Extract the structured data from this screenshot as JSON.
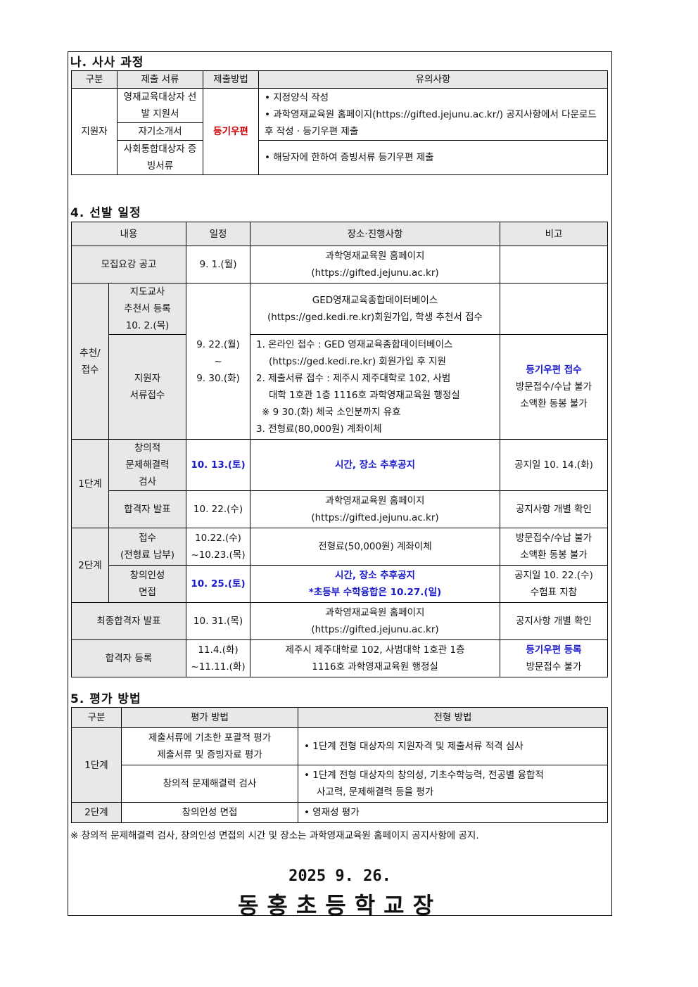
{
  "s1": {
    "title": "나. 사사 과정",
    "headers": [
      "구분",
      "제출 서류",
      "제출방법",
      "유의사항"
    ],
    "group": "지원자",
    "docs": [
      "영재교육대상자 선발 지원서",
      "자기소개서",
      "사회통합대상자 증빙서류"
    ],
    "method": "등기우편",
    "notes": [
      "• 지정양식 작성",
      "• 과학영재교육원 홈페이지(https://gifted.jejunu.ac.kr/) 공지사항에서 다운로드 후 작성 · 등기우편 제출",
      "• 해당자에 한하여 증빙서류 등기우편 제출"
    ]
  },
  "s2": {
    "title": "4. 선발 일정",
    "headers": [
      "내용",
      "일정",
      "장소·진행사항",
      "비고"
    ],
    "r1": {
      "c": "모집요강 공고",
      "d": "9. 1.(월)",
      "p": [
        "과학영재교육원 홈페이지",
        "(https://gifted.jejunu.ac.kr)"
      ]
    },
    "rec": {
      "group": "추천/ 접수",
      "sub1": [
        "지도교사",
        "추천서 등록",
        "10. 2.(목)"
      ],
      "d": [
        "9. 22.(월)",
        "~",
        "9. 30.(화)"
      ],
      "p1": [
        "GED영재교육종합데이터베이스",
        "(https://ged.kedi.re.kr)회원가입, 학생 추천서 접수"
      ],
      "sub2": [
        "지원자",
        "서류접수"
      ],
      "p2": [
        "1. 온라인 접수 : GED 영재교육종합데이터베이스",
        "(https://ged.kedi.re.kr) 회원가입 후 지원",
        "2. 제출서류 접수 : 제주시 제주대학로 102, 사범",
        "대학 1호관 1층 1116호 과학영재교육원 행정실",
        "※ 9 30.(화) 체국 소인분까지 유효",
        "3. 전형료(80,000원) 계좌이체"
      ],
      "n2": [
        "등기우편 접수",
        "방문접수/수납 불가",
        "소액환 동봉 불가"
      ]
    },
    "st1": {
      "group": "1단계",
      "sub1": [
        "창의적",
        "문제해결력",
        "검사"
      ],
      "d1": "10. 13.(토)",
      "p1": "시간, 장소 추후공지",
      "n1": "공지일 10. 14.(화)",
      "sub2": "합격자 발표",
      "d2": "10. 22.(수)",
      "p2": [
        "과학영재교육원 홈페이지",
        "(https://gifted.jejunu.ac.kr)"
      ],
      "n2": "공지사항 개별 확인"
    },
    "st2": {
      "group": "2단계",
      "sub1": [
        "접수",
        "(전형료 납부)"
      ],
      "d1": [
        "10.22.(수)",
        "~10.23.(목)"
      ],
      "p1": "전형료(50,000원) 계좌이체",
      "n1": [
        "방문접수/수납 불가",
        "소액환 동봉 불가"
      ],
      "sub2": [
        "창의인성",
        "면접"
      ],
      "d2": "10. 25.(토)",
      "p2": [
        "시간, 장소 추후공지",
        "*초등부 수학융합은 10.27.(일)"
      ],
      "n2": [
        "공지일 10. 22.(수)",
        "수험표 지참"
      ]
    },
    "fin": {
      "c": "최종합격자 발표",
      "d": "10. 31.(목)",
      "p": [
        "과학영재교육원 홈페이지",
        "(https://gifted.jejunu.ac.kr)"
      ],
      "n": "공지사항 개별 확인"
    },
    "reg": {
      "c": "합격자 등록",
      "d": [
        "11.4.(화)",
        "~11.11.(화)"
      ],
      "p": [
        "제주시 제주대학로 102, 사범대학 1호관 1층",
        "1116호 과학영재교육원 행정실"
      ],
      "n": [
        "등기우편 등록",
        "방문접수 불가"
      ]
    }
  },
  "s3": {
    "title": "5. 평가 방법",
    "headers": [
      "구분",
      "평가 방법",
      "전형 방법"
    ],
    "st1": "1단계",
    "m1": [
      "제출서류에 기초한 포괄적 평가",
      "제출서류 및 증빙자료 평가"
    ],
    "e1": "• 1단계 전형 대상자의 지원자격 및 제출서류 적격 심사",
    "m2": "창의적 문제해결력 검사",
    "e2": [
      "• 1단계 전형 대상자의 창의성, 기초수학능력, 전공별 융합적",
      "사고력, 문제해결력 등을 평가"
    ],
    "st2": "2단계",
    "m3": "창의인성 면접",
    "e3": "• 영재성 평가"
  },
  "note": "※ 창의적 문제해결력 검사, 창의인성 면접의 시간 및 장소는 과학영재교육원 홈페이지 공지사항에 공지.",
  "date": "2025 9. 26.",
  "signer": "동홍초등학교장",
  "colors": {
    "red": "#d00000",
    "blue": "#1a1acc",
    "header_bg": "#e8e8e8"
  }
}
